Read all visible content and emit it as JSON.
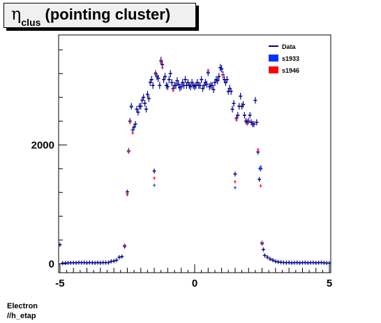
{
  "title": {
    "symbol": "η",
    "subscript": "clus",
    "text": "(pointing cluster)"
  },
  "footer": {
    "line1": "Electron",
    "line2": "//h_etap"
  },
  "chart_data": {
    "type": "scatter",
    "title": "ηclus (pointing cluster)",
    "xlabel": "",
    "ylabel": "",
    "xlim": [
      -5.05,
      5.05
    ],
    "ylim": [
      -150,
      3850
    ],
    "xticks": [
      -5,
      0,
      5
    ],
    "yticks": [
      0,
      2000
    ],
    "grid": false,
    "legend": {
      "placement": "top-right",
      "entries": [
        {
          "label": "Data",
          "marker": "line",
          "color": "#00008b"
        },
        {
          "label": "s1933",
          "marker": "box",
          "color": "#0033ff"
        },
        {
          "label": "s1946",
          "marker": "box",
          "color": "#ff0000"
        }
      ]
    },
    "series": [
      {
        "name": "Data",
        "color": "#00008b",
        "style": "errorbar",
        "points": [
          [
            -5.0,
            320
          ],
          [
            -4.9,
            10
          ],
          [
            -4.8,
            12
          ],
          [
            -4.7,
            15
          ],
          [
            -4.6,
            15
          ],
          [
            -4.5,
            18
          ],
          [
            -4.4,
            15
          ],
          [
            -4.3,
            20
          ],
          [
            -4.2,
            18
          ],
          [
            -4.1,
            20
          ],
          [
            -4.0,
            15
          ],
          [
            -3.9,
            20
          ],
          [
            -3.8,
            18
          ],
          [
            -3.7,
            15
          ],
          [
            -3.6,
            20
          ],
          [
            -3.5,
            15
          ],
          [
            -3.4,
            20
          ],
          [
            -3.3,
            18
          ],
          [
            -3.2,
            20
          ],
          [
            -3.1,
            40
          ],
          [
            -3.0,
            45
          ],
          [
            -2.9,
            60
          ],
          [
            -2.8,
            110
          ],
          [
            -2.7,
            120
          ],
          [
            -2.6,
            300
          ],
          [
            -2.5,
            1210
          ],
          [
            -2.45,
            1900
          ],
          [
            -2.4,
            2400
          ],
          [
            -2.35,
            2650
          ],
          [
            -2.3,
            2250
          ],
          [
            -2.25,
            2300
          ],
          [
            -2.2,
            2350
          ],
          [
            -2.15,
            2600
          ],
          [
            -2.1,
            2550
          ],
          [
            -2.05,
            2650
          ],
          [
            -2.0,
            2650
          ],
          [
            -1.95,
            2750
          ],
          [
            -1.9,
            2800
          ],
          [
            -1.85,
            2700
          ],
          [
            -1.8,
            2600
          ],
          [
            -1.75,
            2850
          ],
          [
            -1.7,
            2780
          ],
          [
            -1.65,
            3050
          ],
          [
            -1.6,
            3100
          ],
          [
            -1.55,
            3000
          ],
          [
            -1.5,
            1560
          ],
          [
            -1.45,
            3200
          ],
          [
            -1.4,
            3150
          ],
          [
            -1.35,
            3120
          ],
          [
            -1.3,
            3000
          ],
          [
            -1.25,
            3420
          ],
          [
            -1.2,
            3350
          ],
          [
            -1.15,
            3100
          ],
          [
            -1.1,
            3150
          ],
          [
            -1.05,
            3000
          ],
          [
            -1.0,
            2980
          ],
          [
            -0.95,
            3100
          ],
          [
            -0.9,
            3200
          ],
          [
            -0.85,
            3050
          ],
          [
            -0.8,
            2950
          ],
          [
            -0.75,
            3000
          ],
          [
            -0.7,
            3000
          ],
          [
            -0.65,
            3080
          ],
          [
            -0.6,
            3020
          ],
          [
            -0.55,
            2960
          ],
          [
            -0.5,
            2980
          ],
          [
            -0.45,
            3050
          ],
          [
            -0.4,
            3000
          ],
          [
            -0.35,
            3100
          ],
          [
            -0.3,
            3000
          ],
          [
            -0.25,
            3050
          ],
          [
            -0.2,
            3000
          ],
          [
            -0.15,
            2980
          ],
          [
            -0.1,
            3050
          ],
          [
            -0.05,
            3000
          ],
          [
            0.0,
            2980
          ],
          [
            0.05,
            3000
          ],
          [
            0.1,
            3050
          ],
          [
            0.15,
            3000
          ],
          [
            0.2,
            3000
          ],
          [
            0.25,
            3100
          ],
          [
            0.3,
            2950
          ],
          [
            0.35,
            3000
          ],
          [
            0.4,
            3050
          ],
          [
            0.45,
            3020
          ],
          [
            0.5,
            3220
          ],
          [
            0.55,
            2980
          ],
          [
            0.6,
            3000
          ],
          [
            0.65,
            3000
          ],
          [
            0.7,
            2930
          ],
          [
            0.75,
            3050
          ],
          [
            0.8,
            3100
          ],
          [
            0.85,
            3080
          ],
          [
            0.9,
            3150
          ],
          [
            0.95,
            3300
          ],
          [
            1.0,
            3280
          ],
          [
            1.05,
            3180
          ],
          [
            1.1,
            3100
          ],
          [
            1.15,
            3050
          ],
          [
            1.2,
            3100
          ],
          [
            1.25,
            2900
          ],
          [
            1.3,
            2950
          ],
          [
            1.35,
            2900
          ],
          [
            1.4,
            2600
          ],
          [
            1.45,
            2700
          ],
          [
            1.5,
            1510
          ],
          [
            1.55,
            2450
          ],
          [
            1.6,
            2500
          ],
          [
            1.65,
            2650
          ],
          [
            1.7,
            2820
          ],
          [
            1.75,
            2650
          ],
          [
            1.8,
            2680
          ],
          [
            1.85,
            2500
          ],
          [
            1.9,
            2400
          ],
          [
            1.95,
            2380
          ],
          [
            2.0,
            2400
          ],
          [
            2.05,
            2500
          ],
          [
            2.1,
            2380
          ],
          [
            2.15,
            2350
          ],
          [
            2.2,
            2350
          ],
          [
            2.25,
            2750
          ],
          [
            2.3,
            2380
          ],
          [
            2.35,
            1880
          ],
          [
            2.4,
            1420
          ],
          [
            2.45,
            1600
          ],
          [
            2.5,
            350
          ],
          [
            2.55,
            240
          ],
          [
            2.6,
            140
          ],
          [
            2.7,
            110
          ],
          [
            2.8,
            80
          ],
          [
            2.9,
            60
          ],
          [
            3.0,
            40
          ],
          [
            3.1,
            30
          ],
          [
            3.2,
            25
          ],
          [
            3.3,
            20
          ],
          [
            3.4,
            18
          ],
          [
            3.5,
            20
          ],
          [
            3.6,
            15
          ],
          [
            3.7,
            18
          ],
          [
            3.8,
            20
          ],
          [
            3.9,
            15
          ],
          [
            4.0,
            18
          ],
          [
            4.1,
            20
          ],
          [
            4.2,
            15
          ],
          [
            4.3,
            18
          ],
          [
            4.4,
            20
          ],
          [
            4.5,
            15
          ],
          [
            4.6,
            18
          ],
          [
            4.7,
            20
          ],
          [
            4.8,
            15
          ],
          [
            4.9,
            12
          ],
          [
            5.0,
            10
          ]
        ]
      },
      {
        "name": "s1933",
        "color": "#0033ff",
        "style": "cross",
        "points": [
          [
            -2.5,
            1180
          ],
          [
            -2.45,
            1900
          ],
          [
            -2.4,
            2400
          ],
          [
            -2.35,
            2630
          ],
          [
            -2.3,
            2250
          ],
          [
            -1.5,
            1320
          ],
          [
            -1.45,
            3180
          ],
          [
            -1.25,
            3380
          ],
          [
            -0.5,
            2970
          ],
          [
            0.5,
            3200
          ],
          [
            1.0,
            3270
          ],
          [
            1.5,
            1280
          ],
          [
            2.0,
            2390
          ],
          [
            2.4,
            1600
          ],
          [
            2.45,
            1630
          ],
          [
            2.5,
            330
          ],
          [
            -2.6,
            280
          ]
        ]
      },
      {
        "name": "s1946",
        "color": "#ff0000",
        "style": "cross",
        "points": [
          [
            -2.5,
            1160
          ],
          [
            -2.45,
            1880
          ],
          [
            -2.4,
            2380
          ],
          [
            -2.3,
            2200
          ],
          [
            -1.5,
            1440
          ],
          [
            -1.45,
            3220
          ],
          [
            -1.25,
            3400
          ],
          [
            -1.2,
            3300
          ],
          [
            -0.8,
            2920
          ],
          [
            0.5,
            3250
          ],
          [
            1.05,
            3180
          ],
          [
            1.5,
            1380
          ],
          [
            1.55,
            2420
          ],
          [
            2.0,
            2380
          ],
          [
            2.35,
            1920
          ],
          [
            2.45,
            1310
          ],
          [
            2.5,
            340
          ],
          [
            -2.6,
            310
          ]
        ]
      }
    ]
  }
}
